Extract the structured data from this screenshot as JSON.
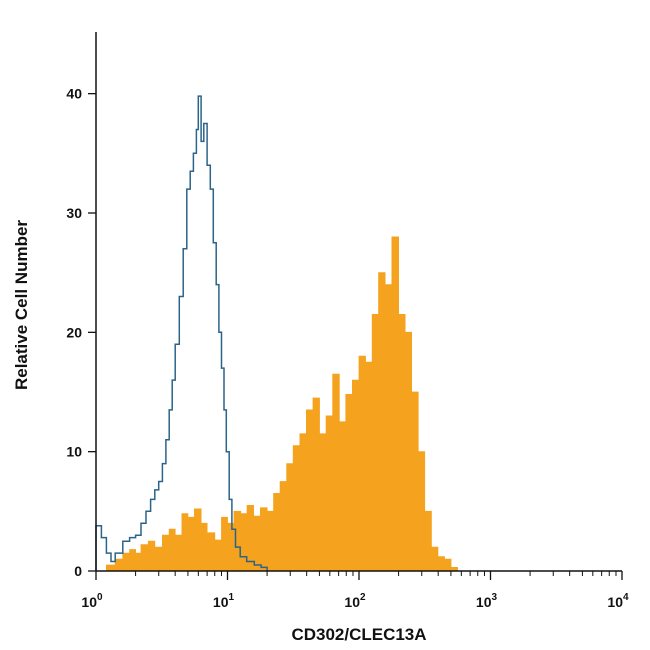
{
  "chart_data": {
    "type": "histogram",
    "xlabel": "CD302/CLEC13A",
    "ylabel": "Relative Cell Number",
    "x_scale": "log",
    "xlim": [
      1,
      10000
    ],
    "ylim": [
      0,
      45
    ],
    "x_ticks": [
      {
        "value": 1,
        "base": "10",
        "exp": "0"
      },
      {
        "value": 10,
        "base": "10",
        "exp": "1"
      },
      {
        "value": 100,
        "base": "10",
        "exp": "2"
      },
      {
        "value": 1000,
        "base": "10",
        "exp": "3"
      },
      {
        "value": 10000,
        "base": "10",
        "exp": "4"
      }
    ],
    "y_ticks": [
      0,
      10,
      20,
      30,
      40
    ],
    "grid": false,
    "legend": "none",
    "series": [
      {
        "style": "filled",
        "color": "#F5A21F",
        "points": [
          [
            1.0,
            0
          ],
          [
            1.2,
            0.5
          ],
          [
            1.4,
            1
          ],
          [
            1.6,
            1.5
          ],
          [
            1.8,
            1.8
          ],
          [
            2.0,
            1.5
          ],
          [
            2.2,
            2.2
          ],
          [
            2.5,
            2.5
          ],
          [
            2.8,
            2.0
          ],
          [
            3.2,
            3.0
          ],
          [
            3.6,
            3.5
          ],
          [
            4.0,
            3.0
          ],
          [
            4.5,
            4.8
          ],
          [
            5.0,
            4.5
          ],
          [
            5.6,
            5.2
          ],
          [
            6.3,
            4.0
          ],
          [
            7.0,
            3.2
          ],
          [
            8.0,
            2.6
          ],
          [
            9.0,
            4.5
          ],
          [
            10.0,
            4.0
          ],
          [
            11.2,
            5.0
          ],
          [
            12.6,
            4.8
          ],
          [
            14.1,
            5.5
          ],
          [
            15.8,
            4.6
          ],
          [
            17.8,
            5.3
          ],
          [
            20.0,
            5.0
          ],
          [
            22.4,
            6.5
          ],
          [
            25.1,
            7.5
          ],
          [
            28.2,
            9.0
          ],
          [
            31.6,
            10.5
          ],
          [
            35.5,
            11.5
          ],
          [
            39.8,
            13.5
          ],
          [
            44.7,
            14.5
          ],
          [
            50.1,
            11.5
          ],
          [
            56.2,
            13.0
          ],
          [
            63.1,
            16.5
          ],
          [
            70.8,
            12.5
          ],
          [
            79.4,
            14.8
          ],
          [
            89.1,
            16.0
          ],
          [
            100,
            18.0
          ],
          [
            112,
            17.5
          ],
          [
            126,
            21.5
          ],
          [
            141,
            25.0
          ],
          [
            158,
            24.0
          ],
          [
            178,
            28.0
          ],
          [
            200,
            21.5
          ],
          [
            224,
            20.0
          ],
          [
            251,
            15.0
          ],
          [
            282,
            10.0
          ],
          [
            316,
            5.0
          ],
          [
            355,
            2.0
          ],
          [
            398,
            1.2
          ],
          [
            447,
            1.0
          ],
          [
            501,
            0.3
          ],
          [
            562,
            0
          ]
        ]
      },
      {
        "style": "outline",
        "color": "#2B6488",
        "points": [
          [
            1.0,
            3.8
          ],
          [
            1.1,
            2.8
          ],
          [
            1.2,
            1.5
          ],
          [
            1.3,
            0.8
          ],
          [
            1.4,
            1.5
          ],
          [
            1.6,
            2.5
          ],
          [
            1.8,
            2.8
          ],
          [
            2.0,
            3.0
          ],
          [
            2.2,
            4.0
          ],
          [
            2.4,
            5.0
          ],
          [
            2.6,
            6.0
          ],
          [
            2.8,
            6.8
          ],
          [
            3.0,
            7.5
          ],
          [
            3.2,
            9.0
          ],
          [
            3.4,
            11.0
          ],
          [
            3.6,
            13.5
          ],
          [
            3.8,
            16.0
          ],
          [
            4.0,
            19.0
          ],
          [
            4.3,
            23.0
          ],
          [
            4.6,
            27.0
          ],
          [
            4.9,
            32.0
          ],
          [
            5.2,
            33.5
          ],
          [
            5.5,
            35.0
          ],
          [
            5.8,
            37.0
          ],
          [
            6.0,
            39.8
          ],
          [
            6.3,
            36.0
          ],
          [
            6.6,
            37.5
          ],
          [
            7.0,
            34.0
          ],
          [
            7.4,
            32.0
          ],
          [
            7.8,
            27.5
          ],
          [
            8.2,
            24.0
          ],
          [
            8.6,
            20.0
          ],
          [
            9.0,
            17.0
          ],
          [
            9.4,
            13.5
          ],
          [
            9.8,
            10.0
          ],
          [
            10.3,
            6.0
          ],
          [
            10.8,
            3.5
          ],
          [
            11.5,
            2.0
          ],
          [
            12.5,
            1.2
          ],
          [
            14.0,
            0.8
          ],
          [
            16.0,
            0.5
          ],
          [
            18.0,
            0.3
          ],
          [
            20.0,
            0
          ]
        ]
      }
    ]
  }
}
